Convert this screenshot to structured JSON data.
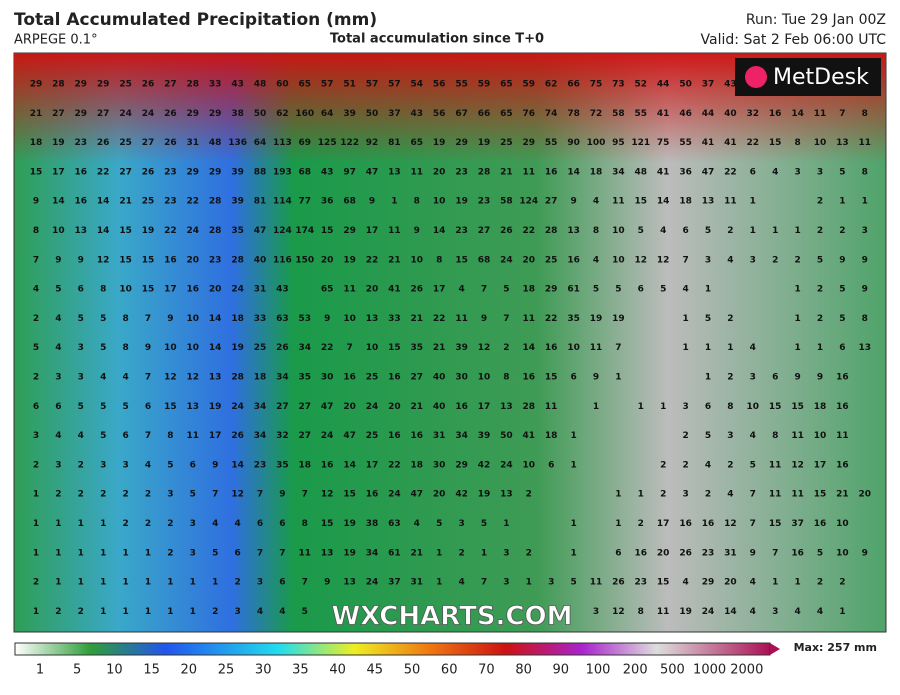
{
  "header": {
    "title": "Total Accumulated Precipitation (mm)",
    "model": "ARPEGE 0.1°",
    "subtitle": "Total accumulation since T+0",
    "run": "Run: Tue 29 Jan 00Z",
    "valid": "Valid: Sat 2 Feb 06:00 UTC"
  },
  "logo": "MetDesk",
  "watermark": "WXCHARTS.COM",
  "grid": {
    "rows": [
      [
        29,
        28,
        29,
        29,
        25,
        26,
        27,
        28,
        33,
        43,
        48,
        60,
        65,
        57,
        51,
        57,
        57,
        54,
        56,
        55,
        59,
        65,
        59,
        62,
        66,
        75,
        73,
        52,
        44,
        50,
        37,
        43
      ],
      [
        21,
        27,
        29,
        27,
        24,
        24,
        26,
        29,
        29,
        38,
        50,
        62,
        160,
        64,
        39,
        50,
        37,
        43,
        56,
        67,
        66,
        65,
        76,
        74,
        78,
        72,
        58,
        55,
        41,
        46,
        44,
        40,
        32,
        16,
        14,
        11,
        7,
        8
      ],
      [
        18,
        19,
        23,
        26,
        25,
        27,
        26,
        31,
        48,
        136,
        64,
        113,
        69,
        125,
        122,
        92,
        81,
        65,
        19,
        29,
        19,
        25,
        29,
        55,
        90,
        100,
        95,
        121,
        75,
        55,
        41,
        41,
        22,
        15,
        8,
        10,
        13,
        11
      ],
      [
        15,
        17,
        16,
        22,
        27,
        26,
        23,
        29,
        29,
        39,
        88,
        193,
        68,
        43,
        97,
        47,
        13,
        11,
        20,
        23,
        28,
        21,
        11,
        16,
        14,
        18,
        34,
        48,
        41,
        36,
        47,
        22,
        6,
        4,
        3,
        3,
        5,
        8
      ],
      [
        9,
        14,
        16,
        14,
        21,
        25,
        23,
        22,
        28,
        39,
        81,
        114,
        77,
        36,
        68,
        9,
        1,
        8,
        10,
        19,
        23,
        58,
        124,
        27,
        9,
        4,
        11,
        15,
        14,
        18,
        13,
        11,
        1,
        null,
        null,
        2,
        1,
        1
      ],
      [
        8,
        10,
        13,
        14,
        15,
        19,
        22,
        24,
        28,
        35,
        47,
        124,
        174,
        15,
        29,
        17,
        11,
        9,
        14,
        23,
        27,
        26,
        22,
        28,
        13,
        8,
        10,
        5,
        4,
        6,
        5,
        2,
        1,
        1,
        1,
        2,
        2,
        3
      ],
      [
        7,
        9,
        9,
        12,
        15,
        15,
        16,
        20,
        23,
        28,
        40,
        116,
        150,
        20,
        19,
        22,
        21,
        10,
        8,
        15,
        68,
        24,
        20,
        25,
        16,
        4,
        10,
        12,
        12,
        7,
        3,
        4,
        3,
        2,
        2,
        5,
        9,
        9
      ],
      [
        4,
        5,
        6,
        8,
        10,
        15,
        17,
        16,
        20,
        24,
        31,
        43,
        null,
        65,
        11,
        20,
        41,
        26,
        17,
        4,
        7,
        5,
        18,
        29,
        61,
        5,
        5,
        6,
        5,
        4,
        1,
        null,
        null,
        null,
        1,
        2,
        5,
        9
      ],
      [
        2,
        4,
        5,
        5,
        8,
        7,
        9,
        10,
        14,
        18,
        33,
        63,
        53,
        9,
        10,
        13,
        33,
        21,
        22,
        11,
        9,
        7,
        11,
        22,
        35,
        19,
        19,
        null,
        null,
        1,
        5,
        2,
        null,
        null,
        1,
        2,
        5,
        8
      ],
      [
        5,
        4,
        3,
        5,
        8,
        9,
        10,
        10,
        14,
        19,
        25,
        26,
        34,
        22,
        7,
        10,
        15,
        35,
        21,
        39,
        12,
        2,
        14,
        16,
        10,
        11,
        7,
        null,
        null,
        1,
        1,
        1,
        4,
        null,
        1,
        1,
        6,
        13
      ],
      [
        2,
        3,
        3,
        4,
        4,
        7,
        12,
        12,
        13,
        28,
        18,
        34,
        35,
        30,
        16,
        25,
        16,
        27,
        40,
        30,
        10,
        8,
        16,
        15,
        6,
        9,
        1,
        null,
        null,
        null,
        1,
        2,
        3,
        6,
        9,
        9,
        16
      ],
      [
        6,
        6,
        5,
        5,
        5,
        6,
        15,
        13,
        19,
        24,
        34,
        27,
        27,
        47,
        20,
        24,
        20,
        21,
        40,
        16,
        17,
        13,
        28,
        11,
        null,
        1,
        null,
        1,
        1,
        3,
        6,
        8,
        10,
        15,
        15,
        18,
        16
      ],
      [
        3,
        4,
        4,
        5,
        6,
        7,
        8,
        11,
        17,
        26,
        34,
        32,
        27,
        24,
        47,
        25,
        16,
        16,
        31,
        34,
        39,
        50,
        41,
        18,
        1,
        null,
        null,
        null,
        null,
        2,
        5,
        3,
        4,
        8,
        11,
        10,
        11
      ],
      [
        2,
        3,
        2,
        3,
        3,
        4,
        5,
        6,
        9,
        14,
        23,
        35,
        18,
        16,
        14,
        17,
        22,
        18,
        30,
        29,
        42,
        24,
        10,
        6,
        1,
        null,
        null,
        null,
        2,
        2,
        4,
        2,
        5,
        11,
        12,
        17,
        16
      ],
      [
        1,
        2,
        2,
        2,
        2,
        2,
        3,
        5,
        7,
        12,
        7,
        9,
        7,
        12,
        15,
        16,
        24,
        47,
        20,
        42,
        19,
        13,
        2,
        null,
        null,
        null,
        1,
        1,
        2,
        3,
        2,
        4,
        7,
        11,
        11,
        15,
        21,
        20
      ],
      [
        1,
        1,
        1,
        1,
        2,
        2,
        2,
        3,
        4,
        4,
        6,
        6,
        8,
        15,
        19,
        38,
        63,
        4,
        5,
        3,
        5,
        1,
        null,
        null,
        1,
        null,
        1,
        2,
        17,
        16,
        16,
        12,
        7,
        15,
        37,
        16,
        10
      ],
      [
        1,
        1,
        1,
        1,
        1,
        1,
        2,
        3,
        5,
        6,
        7,
        7,
        11,
        13,
        19,
        34,
        61,
        21,
        1,
        2,
        1,
        3,
        2,
        null,
        1,
        null,
        6,
        16,
        20,
        26,
        23,
        31,
        9,
        7,
        16,
        5,
        10,
        9
      ],
      [
        2,
        1,
        1,
        1,
        1,
        1,
        1,
        1,
        1,
        2,
        3,
        6,
        7,
        9,
        13,
        24,
        37,
        31,
        1,
        4,
        7,
        3,
        1,
        3,
        5,
        11,
        26,
        23,
        15,
        4,
        29,
        20,
        4,
        1,
        1,
        2,
        2
      ],
      [
        1,
        2,
        2,
        1,
        1,
        1,
        1,
        1,
        2,
        3,
        4,
        4,
        5,
        null,
        null,
        null,
        null,
        null,
        null,
        null,
        null,
        null,
        null,
        null,
        null,
        3,
        12,
        8,
        11,
        19,
        24,
        14,
        4,
        3,
        4,
        4,
        1
      ]
    ]
  },
  "colorbar": {
    "labels": [
      "1",
      "5",
      "10",
      "15",
      "20",
      "25",
      "30",
      "35",
      "40",
      "45",
      "50",
      "60",
      "70",
      "80",
      "90",
      "100",
      "200",
      "500",
      "1000",
      "2000"
    ],
    "max": "Max: 257 mm"
  }
}
